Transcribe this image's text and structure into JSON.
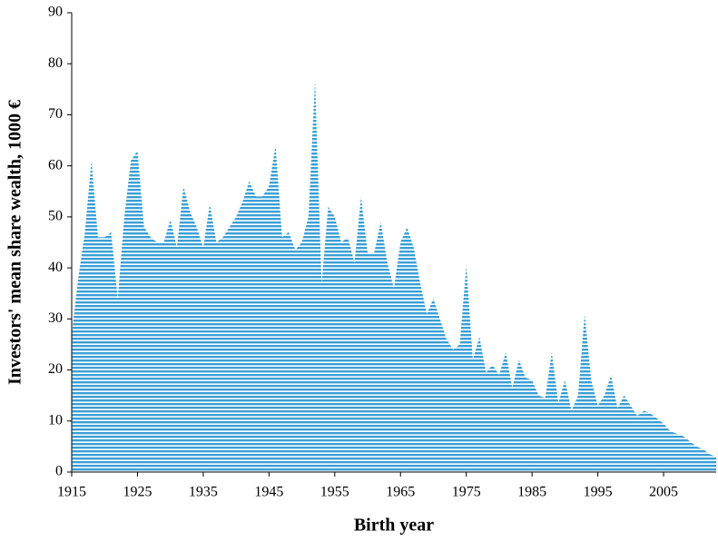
{
  "chart_data": {
    "type": "area",
    "x_label": "Birth year",
    "y_label": "Investors' mean share wealth, 1000 €",
    "color": "#3a9fd6",
    "x": [
      1915,
      1916,
      1917,
      1918,
      1919,
      1920,
      1921,
      1922,
      1923,
      1924,
      1925,
      1926,
      1927,
      1928,
      1929,
      1930,
      1931,
      1932,
      1933,
      1934,
      1935,
      1936,
      1937,
      1938,
      1939,
      1940,
      1941,
      1942,
      1943,
      1944,
      1945,
      1946,
      1947,
      1948,
      1949,
      1950,
      1951,
      1952,
      1953,
      1954,
      1955,
      1956,
      1957,
      1958,
      1959,
      1960,
      1961,
      1962,
      1963,
      1964,
      1965,
      1966,
      1967,
      1968,
      1969,
      1970,
      1971,
      1972,
      1973,
      1974,
      1975,
      1976,
      1977,
      1978,
      1979,
      1980,
      1981,
      1982,
      1983,
      1984,
      1985,
      1986,
      1987,
      1988,
      1989,
      1990,
      1991,
      1992,
      1993,
      1994,
      1995,
      1996,
      1997,
      1998,
      1999,
      2000,
      2001,
      2002,
      2003,
      2004,
      2005,
      2006,
      2007,
      2008,
      2009,
      2010,
      2011,
      2012,
      2013
    ],
    "values": [
      27,
      38,
      47,
      61,
      46,
      46,
      47,
      34,
      50,
      61,
      63,
      48,
      46,
      45,
      45,
      49.5,
      44,
      56,
      51,
      48,
      44,
      52.5,
      45,
      46,
      48,
      50,
      53,
      57,
      54,
      54,
      56,
      64,
      46,
      47,
      43.5,
      45,
      50,
      77,
      37,
      52,
      50,
      45,
      46,
      41,
      54,
      43,
      43,
      49,
      41,
      36,
      45,
      48,
      44,
      37,
      31,
      34,
      30,
      26,
      24,
      25,
      40.5,
      22,
      26.5,
      19.5,
      21,
      19,
      23.5,
      16.5,
      22,
      18.5,
      18,
      15,
      14.5,
      23.5,
      13.5,
      18,
      12,
      15,
      31,
      18,
      13,
      15,
      19,
      12.5,
      15,
      13,
      11,
      12,
      11.5,
      10.5,
      9.5,
      8,
      7.5,
      7,
      6,
      5,
      4.5,
      3.5,
      3
    ],
    "xlim": [
      1915,
      2013
    ],
    "xticks": [
      1915,
      1925,
      1935,
      1945,
      1955,
      1965,
      1975,
      1985,
      1995,
      2005
    ],
    "ylim": [
      0,
      90
    ],
    "yticks": [
      0,
      10,
      20,
      30,
      40,
      50,
      60,
      70,
      80,
      90
    ],
    "grid": false
  }
}
